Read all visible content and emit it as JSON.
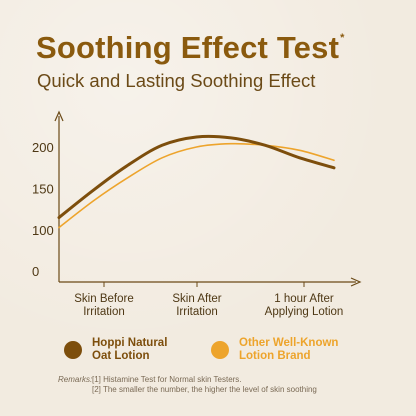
{
  "header": {
    "title": "Soothing Effect Test",
    "title_mark": "*",
    "subtitle": "Quick and Lasting Soothing Effect"
  },
  "chart_data": {
    "type": "line",
    "title": "Soothing Effect Test",
    "subtitle": "Quick and Lasting Soothing Effect",
    "xlabel": "",
    "ylabel": "",
    "categories": [
      "Skin Before Irritation",
      "Skin After Irritation",
      "1 hour After Applying Lotion"
    ],
    "category_lines": [
      [
        "Skin Before",
        "Irritation"
      ],
      [
        "Skin After",
        "Irritation"
      ],
      [
        "1 hour After",
        "Applying Lotion"
      ]
    ],
    "yticks": [
      0,
      100,
      150,
      200
    ],
    "ylim": [
      0,
      240
    ],
    "grid": false,
    "legend_position": "bottom",
    "series": [
      {
        "name": "Hoppi Natural Oat Lotion",
        "name_lines": [
          "Hoppi Natural",
          "Oat Lotion"
        ],
        "color": "#7d4e0c",
        "x": [
          0,
          0.5,
          1,
          1.5,
          2,
          2.5,
          3,
          3.5,
          4
        ],
        "values": [
          115,
          148,
          178,
          202,
          212,
          211,
          202,
          187,
          175
        ]
      },
      {
        "name": "Other Well-Known Lotion Brand",
        "name_lines": [
          "Other Well-Known",
          "Lotion Brand"
        ],
        "color": "#eda42c",
        "x": [
          0,
          0.5,
          1,
          1.5,
          2,
          2.5,
          3,
          3.5,
          4
        ],
        "values": [
          103,
          135,
          163,
          187,
          200,
          204,
          202,
          196,
          184
        ]
      }
    ]
  },
  "remarks": {
    "label": "Remarks:",
    "items": [
      "[1] Histamine Test for Normal skin Testers.",
      "[2] The smaller the number, the higher the level of skin soothing"
    ]
  }
}
